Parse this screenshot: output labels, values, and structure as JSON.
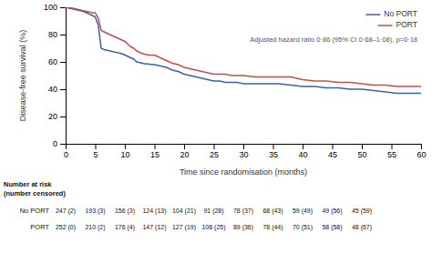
{
  "chart_data": {
    "type": "line",
    "xlabel": "Time since randomisation (months)",
    "ylabel": "Disease-free survival (%)",
    "annotation": "Adjusted hazard ratio 0·86 (95% CI 0·68–1·08), p=0·18",
    "x": [
      0,
      0.5,
      1,
      1.5,
      2,
      2.5,
      3,
      3.5,
      4,
      4.5,
      5,
      5.5,
      6,
      6.5,
      7,
      7.5,
      8,
      8.5,
      9,
      9.5,
      10,
      10.5,
      11,
      11.5,
      12,
      12.5,
      13,
      13.5,
      14,
      14.5,
      15,
      16,
      17,
      18,
      19,
      20,
      21,
      22,
      23,
      24,
      25,
      26,
      27,
      28,
      29,
      30,
      32,
      34,
      36,
      38,
      40,
      42,
      44,
      46,
      48,
      50,
      52,
      54,
      56,
      58,
      60
    ],
    "series": [
      {
        "name": "No PORT",
        "color": "#3D62A7",
        "values": [
          100,
          99.5,
          99,
          98.5,
          98,
          97.5,
          97,
          96,
          95,
          94,
          93,
          87,
          70,
          69,
          68.5,
          68,
          67.5,
          67,
          66.5,
          66,
          65,
          64,
          63,
          62,
          60,
          59.5,
          59,
          58.5,
          58.5,
          58,
          58,
          57,
          56,
          54,
          53,
          51,
          50,
          49,
          48,
          47,
          46,
          46,
          45,
          45,
          45,
          44,
          44,
          44,
          44,
          43,
          42,
          42,
          41,
          41,
          40,
          40,
          39,
          38,
          37,
          37,
          37
        ]
      },
      {
        "name": "PORT",
        "color": "#C0504D",
        "values": [
          100,
          100,
          99.5,
          99,
          98.5,
          98,
          97.5,
          97,
          96.5,
          96,
          96,
          92,
          83,
          82,
          81,
          80,
          79,
          78,
          77,
          76,
          75,
          73,
          71,
          70,
          68,
          67,
          66,
          65.5,
          65,
          65,
          65,
          63,
          61,
          59,
          58,
          56,
          55,
          54,
          53,
          52,
          51,
          51,
          51,
          50,
          50,
          50,
          49,
          49,
          49,
          49,
          47,
          46,
          46,
          45,
          45,
          44,
          43,
          43,
          42,
          42,
          42
        ]
      }
    ],
    "xlim": [
      0,
      60
    ],
    "ylim": [
      0,
      100
    ],
    "xticks": [
      0,
      5,
      10,
      15,
      20,
      25,
      30,
      35,
      40,
      45,
      50,
      55,
      60
    ],
    "yticks": [
      0,
      20,
      40,
      60,
      80,
      100
    ],
    "grid": false,
    "legend": "upper right",
    "risk_table": {
      "title": "Number at risk\n(number censored)",
      "x": [
        0,
        5,
        10,
        15,
        20,
        25,
        30,
        35,
        40,
        45,
        50
      ],
      "rows": [
        {
          "name": "No PORT",
          "labels": [
            "247 (2)",
            "193 (3)",
            "156 (3)",
            "124 (13)",
            "104 (21)",
            "91 (28)",
            "78 (37)",
            "68 (43)",
            "59 (49)",
            "49 (56)",
            "45 (59)"
          ]
        },
        {
          "name": "PORT",
          "labels": [
            "252 (0)",
            "210 (2)",
            "176 (4)",
            "147 (12)",
            "127 (19)",
            "108 (25)",
            "89 (36)",
            "78 (44)",
            "70 (51)",
            "58 (58)",
            "48 (67)"
          ]
        }
      ]
    }
  }
}
